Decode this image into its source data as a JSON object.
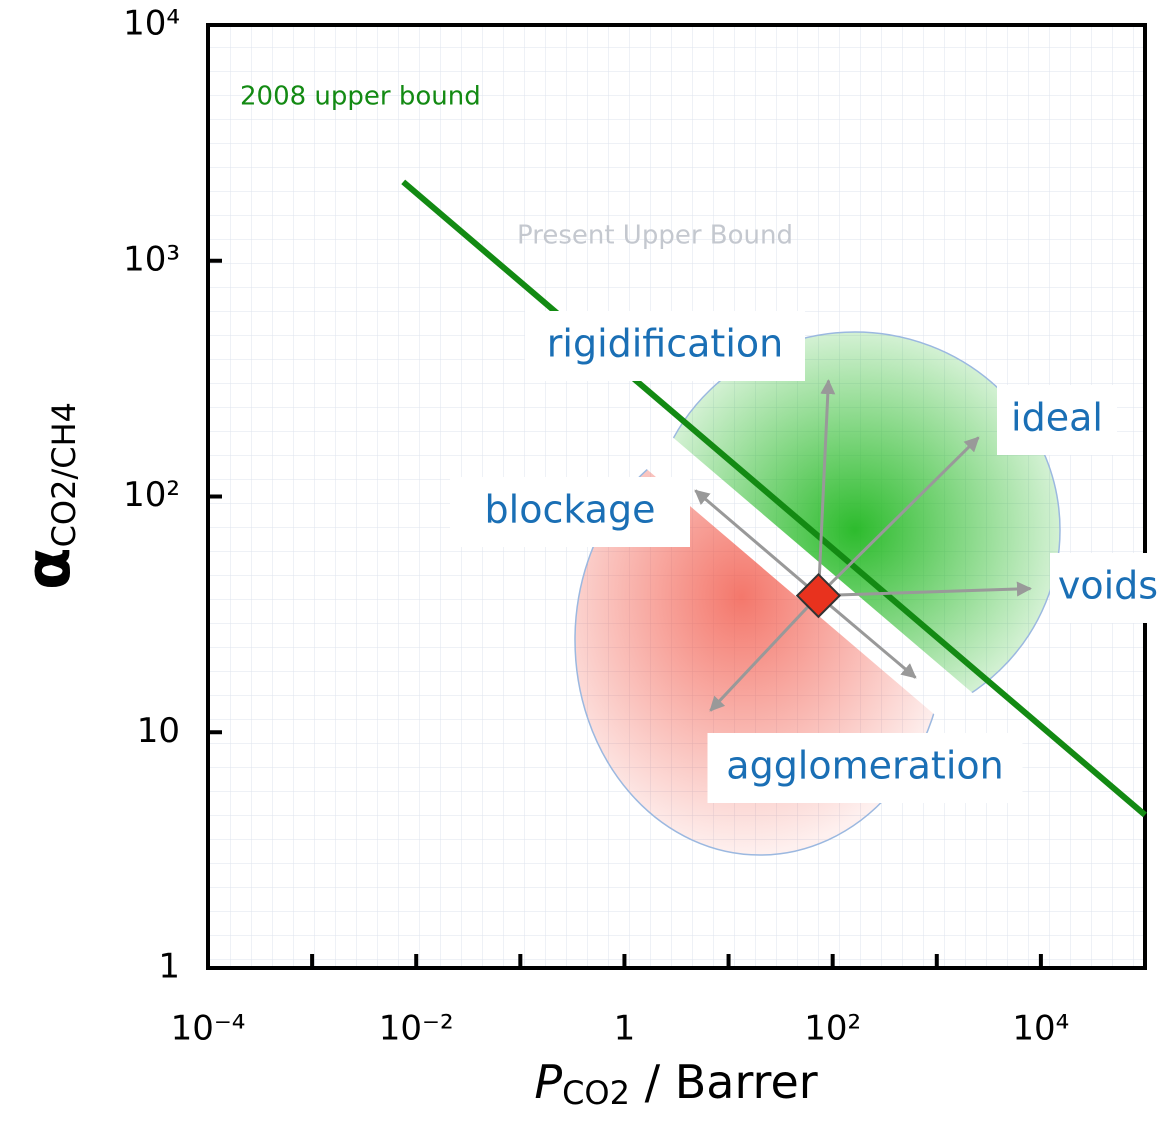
{
  "chart_data": {
    "type": "line",
    "log_x": true,
    "log_y": true,
    "xlim": [
      0.0001,
      100000
    ],
    "ylim": [
      1,
      10000
    ],
    "xticks": [
      {
        "value": 0.0001,
        "label": "10⁻⁴"
      },
      {
        "value": 0.01,
        "label": "10⁻²"
      },
      1,
      {
        "value": 100,
        "label": "10²"
      },
      {
        "value": 10000,
        "label": "10⁴"
      }
    ],
    "xminorticks": [
      0.001,
      0.1,
      10,
      1000
    ],
    "yticks": [
      1,
      10,
      {
        "value": 100,
        "label": "10²"
      },
      {
        "value": 1000,
        "label": "10³"
      },
      {
        "value": 10000,
        "label": "10⁴"
      }
    ],
    "xlabel": {
      "symbol": "P",
      "subscript": "CO2",
      "unit": " / Barrer"
    },
    "ylabel": {
      "symbol": "α",
      "subscript": "CO2/CH4"
    },
    "series": [
      {
        "name": "2008 upper bound",
        "color": "#138a13",
        "x": [
          0.0075,
          100000
        ],
        "values": [
          2160,
          4.46
        ]
      }
    ],
    "marker": {
      "x": 73,
      "y": 38,
      "color": "#e8321e"
    },
    "background_label": "Present Upper Bound",
    "annotations": [
      "rigidification",
      "ideal",
      "blockage",
      "voids",
      "agglomeration"
    ]
  }
}
